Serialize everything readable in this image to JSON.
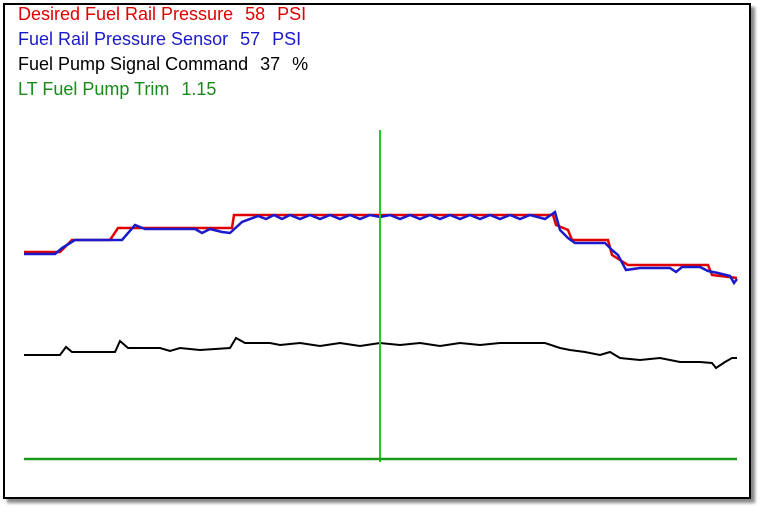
{
  "readouts": [
    {
      "label": "Desired Fuel Rail Pressure",
      "value": "58",
      "unit": "PSI",
      "color": "#e00000"
    },
    {
      "label": "Fuel Rail Pressure Sensor",
      "value": "57",
      "unit": "PSI",
      "color": "#1a1acc"
    },
    {
      "label": "Fuel Pump Signal Command",
      "value": "37",
      "unit": "%",
      "color": "#000000"
    },
    {
      "label": "LT Fuel Pump Trim",
      "value": "1.15",
      "color": "#1a8a1a"
    }
  ]
}
